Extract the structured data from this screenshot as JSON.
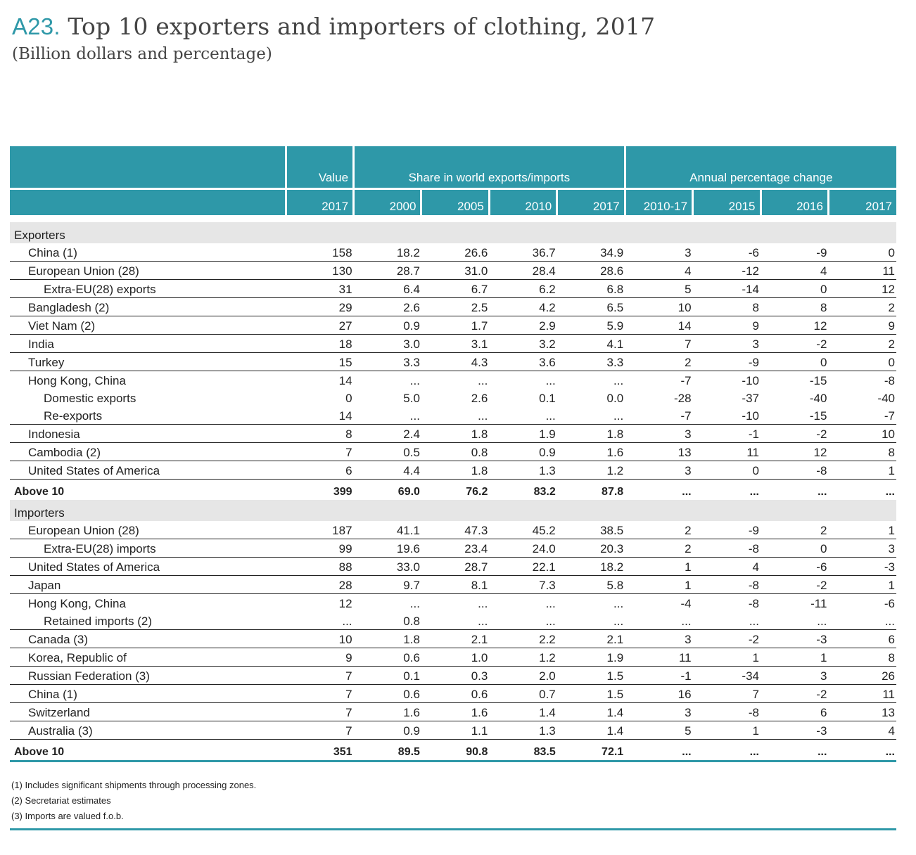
{
  "title": {
    "code": "A23.",
    "text": "Top 10 exporters and importers of clothing, 2017"
  },
  "subtitle": "(Billion dollars and percentage)",
  "header": {
    "group_value": "Value",
    "group_share": "Share in world exports/imports",
    "group_change": "Annual percentage change",
    "years": [
      "2017",
      "2000",
      "2005",
      "2010",
      "2017",
      "2010-17",
      "2015",
      "2016",
      "2017"
    ]
  },
  "exporters": {
    "label": "Exporters",
    "rows": [
      {
        "name": "China (1)",
        "indent": 1,
        "values": [
          "158",
          "18.2",
          "26.6",
          "36.7",
          "34.9",
          "3",
          "-6",
          "-9",
          "0"
        ]
      },
      {
        "name": "European Union (28)",
        "indent": 1,
        "values": [
          "130",
          "28.7",
          "31.0",
          "28.4",
          "28.6",
          "4",
          "-12",
          "4",
          "11"
        ]
      },
      {
        "name": "Extra-EU(28) exports",
        "indent": 2,
        "values": [
          "31",
          "6.4",
          "6.7",
          "6.2",
          "6.8",
          "5",
          "-14",
          "0",
          "12"
        ]
      },
      {
        "name": "Bangladesh (2)",
        "indent": 1,
        "values": [
          "29",
          "2.6",
          "2.5",
          "4.2",
          "6.5",
          "10",
          "8",
          "8",
          "2"
        ]
      },
      {
        "name": "Viet Nam (2)",
        "indent": 1,
        "values": [
          "27",
          "0.9",
          "1.7",
          "2.9",
          "5.9",
          "14",
          "9",
          "12",
          "9"
        ]
      },
      {
        "name": "India",
        "indent": 1,
        "values": [
          "18",
          "3.0",
          "3.1",
          "3.2",
          "4.1",
          "7",
          "3",
          "-2",
          "2"
        ]
      },
      {
        "name": "Turkey",
        "indent": 1,
        "values": [
          "15",
          "3.3",
          "4.3",
          "3.6",
          "3.3",
          "2",
          "-9",
          "0",
          "0"
        ]
      },
      {
        "name": "Hong Kong, China",
        "indent": 1,
        "noline": true,
        "values": [
          "14",
          "...",
          "...",
          "...",
          "...",
          "-7",
          "-10",
          "-15",
          "-8"
        ]
      },
      {
        "name": "Domestic exports",
        "indent": 2,
        "noline": true,
        "values": [
          "0",
          "5.0",
          "2.6",
          "0.1",
          "0.0",
          "-28",
          "-37",
          "-40",
          "-40"
        ]
      },
      {
        "name": "Re-exports",
        "indent": 2,
        "values": [
          "14",
          "...",
          "...",
          "...",
          "...",
          "-7",
          "-10",
          "-15",
          "-7"
        ]
      },
      {
        "name": "Indonesia",
        "indent": 1,
        "values": [
          "8",
          "2.4",
          "1.8",
          "1.9",
          "1.8",
          "3",
          "-1",
          "-2",
          "10"
        ]
      },
      {
        "name": "Cambodia (2)",
        "indent": 1,
        "values": [
          "7",
          "0.5",
          "0.8",
          "0.9",
          "1.6",
          "13",
          "11",
          "12",
          "8"
        ]
      },
      {
        "name": "United States of America",
        "indent": 1,
        "values": [
          "6",
          "4.4",
          "1.8",
          "1.3",
          "1.2",
          "3",
          "0",
          "-8",
          "1"
        ]
      }
    ],
    "total": {
      "name": "Above 10",
      "values": [
        "399",
        "69.0",
        "76.2",
        "83.2",
        "87.8",
        "...",
        "...",
        "...",
        "..."
      ]
    }
  },
  "importers": {
    "label": "Importers",
    "rows": [
      {
        "name": "European Union (28)",
        "indent": 1,
        "values": [
          "187",
          "41.1",
          "47.3",
          "45.2",
          "38.5",
          "2",
          "-9",
          "2",
          "1"
        ]
      },
      {
        "name": "Extra-EU(28) imports",
        "indent": 2,
        "values": [
          "99",
          "19.6",
          "23.4",
          "24.0",
          "20.3",
          "2",
          "-8",
          "0",
          "3"
        ]
      },
      {
        "name": "United States of America",
        "indent": 1,
        "values": [
          "88",
          "33.0",
          "28.7",
          "22.1",
          "18.2",
          "1",
          "4",
          "-6",
          "-3"
        ]
      },
      {
        "name": "Japan",
        "indent": 1,
        "values": [
          "28",
          "9.7",
          "8.1",
          "7.3",
          "5.8",
          "1",
          "-8",
          "-2",
          "1"
        ]
      },
      {
        "name": "Hong Kong, China",
        "indent": 1,
        "noline": true,
        "values": [
          "12",
          "...",
          "...",
          "...",
          "...",
          "-4",
          "-8",
          "-11",
          "-6"
        ]
      },
      {
        "name": "Retained imports (2)",
        "indent": 2,
        "values": [
          "...",
          "0.8",
          "...",
          "...",
          "...",
          "...",
          "...",
          "...",
          "..."
        ]
      },
      {
        "name": "Canada (3)",
        "indent": 1,
        "values": [
          "10",
          "1.8",
          "2.1",
          "2.2",
          "2.1",
          "3",
          "-2",
          "-3",
          "6"
        ]
      },
      {
        "name": "Korea, Republic of",
        "indent": 1,
        "values": [
          "9",
          "0.6",
          "1.0",
          "1.2",
          "1.9",
          "11",
          "1",
          "1",
          "8"
        ]
      },
      {
        "name": "Russian Federation (3)",
        "indent": 1,
        "values": [
          "7",
          "0.1",
          "0.3",
          "2.0",
          "1.5",
          "-1",
          "-34",
          "3",
          "26"
        ]
      },
      {
        "name": "China (1)",
        "indent": 1,
        "values": [
          "7",
          "0.6",
          "0.6",
          "0.7",
          "1.5",
          "16",
          "7",
          "-2",
          "11"
        ]
      },
      {
        "name": "Switzerland",
        "indent": 1,
        "values": [
          "7",
          "1.6",
          "1.6",
          "1.4",
          "1.4",
          "3",
          "-8",
          "6",
          "13"
        ]
      },
      {
        "name": "Australia (3)",
        "indent": 1,
        "values": [
          "7",
          "0.9",
          "1.1",
          "1.3",
          "1.4",
          "5",
          "1",
          "-3",
          "4"
        ]
      }
    ],
    "total": {
      "name": "Above 10",
      "values": [
        "351",
        "89.5",
        "90.8",
        "83.5",
        "72.1",
        "...",
        "...",
        "...",
        "..."
      ]
    }
  },
  "notes": [
    "(1)  Includes significant shipments through processing zones.",
    "(2)  Secretariat estimates",
    "(3) Imports are valued f.o.b."
  ]
}
